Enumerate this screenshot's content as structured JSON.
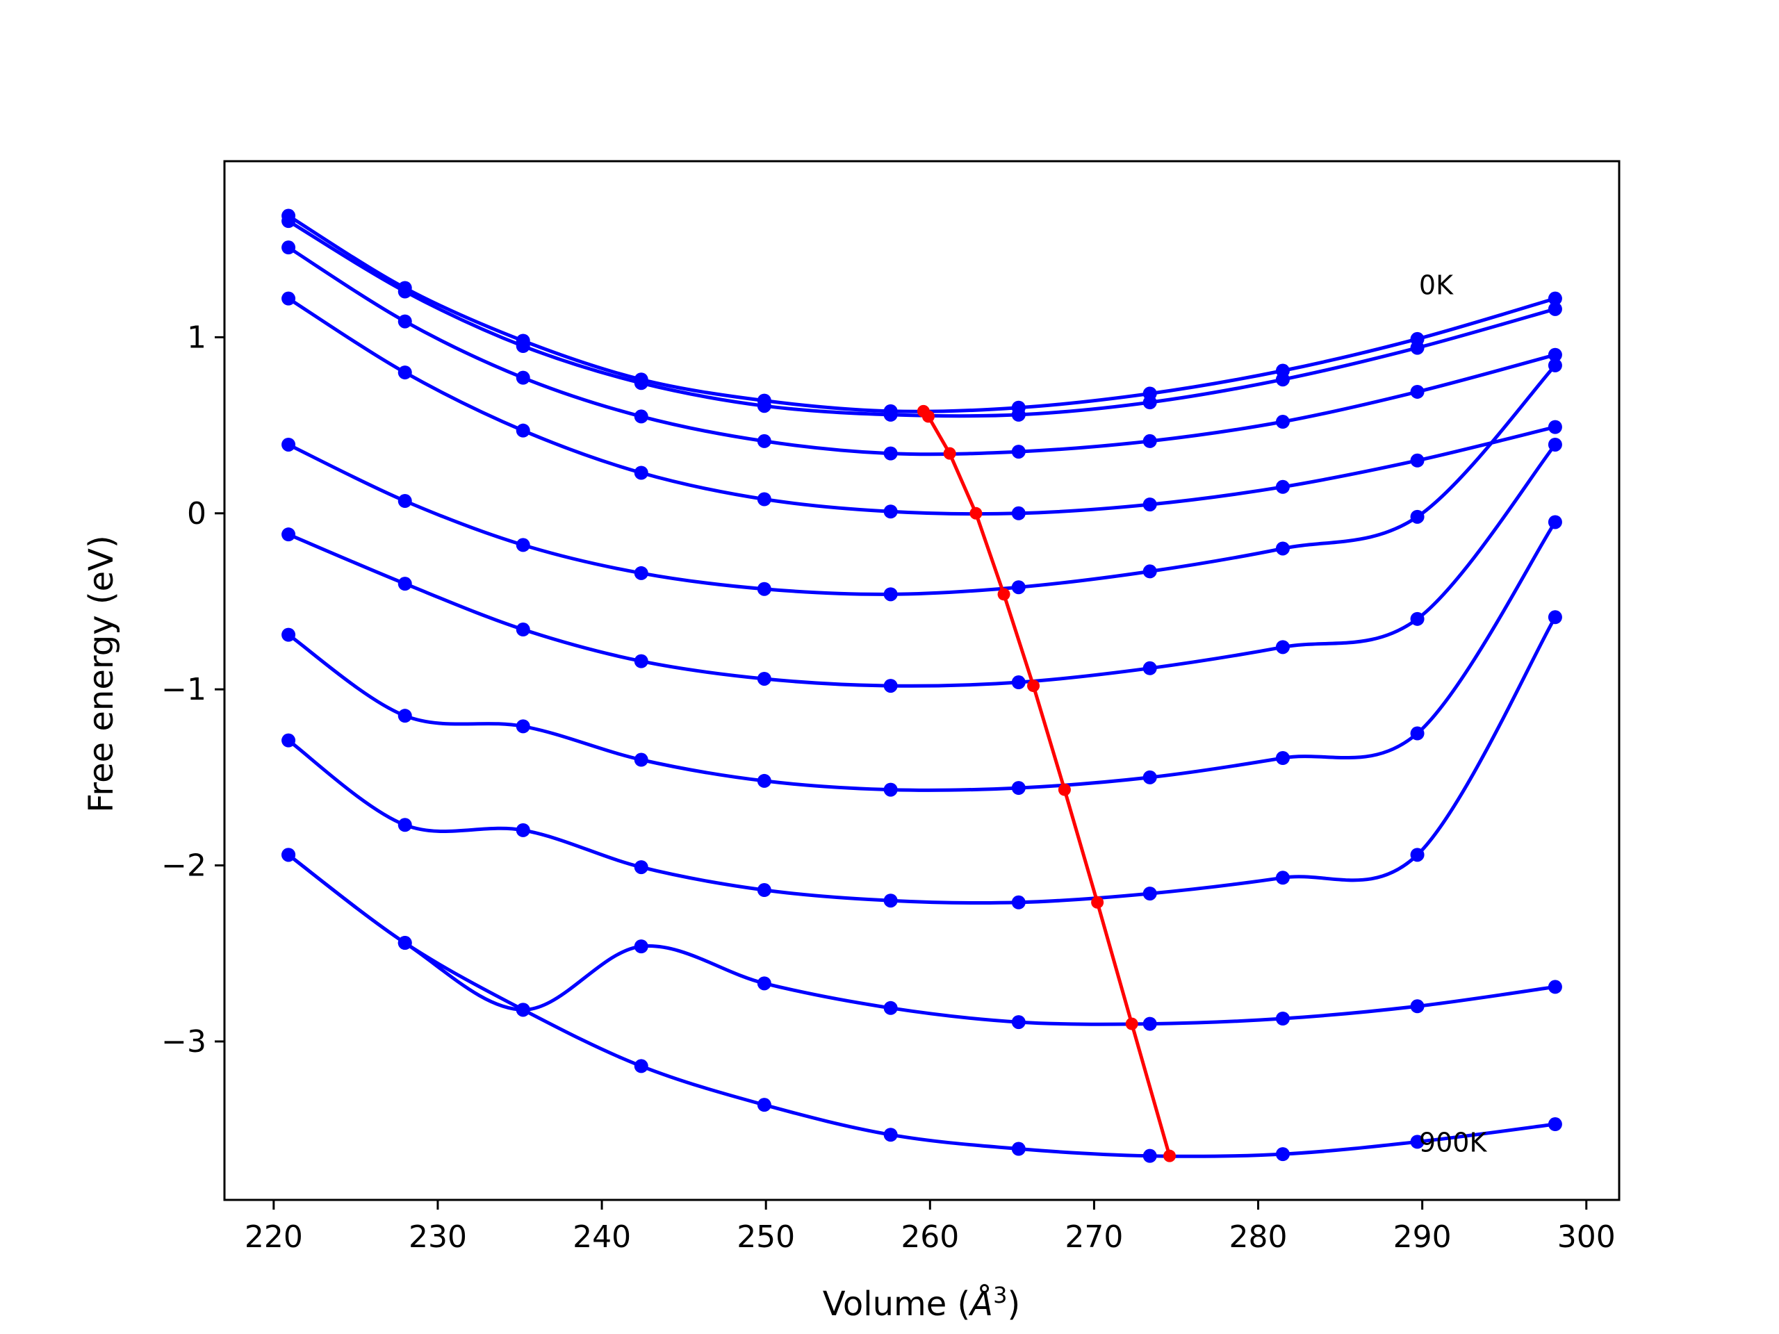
{
  "chart_data": {
    "type": "line",
    "title": "",
    "xlabel_prefix": "Volume (",
    "xlabel_unit": "Å",
    "xlabel_sup": "3",
    "xlabel_suffix": ")",
    "ylabel": "Free energy (eV)",
    "xlim": [
      217,
      302
    ],
    "ylim": [
      -3.9,
      2.0
    ],
    "xticks": [
      220,
      230,
      240,
      250,
      260,
      270,
      280,
      290,
      300
    ],
    "xtick_labels": [
      "220",
      "230",
      "240",
      "250",
      "260",
      "270",
      "280",
      "290",
      "300"
    ],
    "yticks": [
      1,
      0,
      -1,
      -2,
      -3
    ],
    "ytick_labels": [
      "1",
      "0",
      "−1",
      "−2",
      "−3"
    ],
    "grid": false,
    "annotations": [
      {
        "text": "0K",
        "x": 289.8,
        "y": 1.3
      },
      {
        "text": "900K",
        "x": 289.8,
        "y": -3.57
      }
    ],
    "curve_color": "#0000ff",
    "min_line_color": "#ff0000",
    "x": [
      220.9,
      228.0,
      235.2,
      242.4,
      249.9,
      257.6,
      265.4,
      273.4,
      281.5,
      289.7,
      298.1
    ],
    "series": [
      {
        "values": [
          1.69,
          1.28,
          0.98,
          0.76,
          0.64,
          0.58,
          0.6,
          0.68,
          0.81,
          0.99,
          1.22
        ]
      },
      {
        "values": [
          1.66,
          1.26,
          0.95,
          0.74,
          0.61,
          0.56,
          0.56,
          0.63,
          0.76,
          0.94,
          1.16
        ]
      },
      {
        "values": [
          1.51,
          1.09,
          0.77,
          0.55,
          0.41,
          0.34,
          0.35,
          0.41,
          0.52,
          0.69,
          0.9
        ]
      },
      {
        "values": [
          1.22,
          0.8,
          0.47,
          0.23,
          0.08,
          0.01,
          0.0,
          0.05,
          0.15,
          0.3,
          0.49
        ]
      },
      {
        "values": [
          0.39,
          0.07,
          -0.18,
          -0.34,
          -0.43,
          -0.46,
          -0.42,
          -0.33,
          -0.2,
          -0.02,
          0.84
        ]
      },
      {
        "values": [
          -0.12,
          -0.4,
          -0.66,
          -0.84,
          -0.94,
          -0.98,
          -0.96,
          -0.88,
          -0.76,
          -0.6,
          0.39
        ]
      },
      {
        "values": [
          -0.69,
          -1.15,
          -1.21,
          -1.4,
          -1.52,
          -1.57,
          -1.56,
          -1.5,
          -1.39,
          -1.25,
          -0.05
        ]
      },
      {
        "values": [
          -1.29,
          -1.77,
          -1.8,
          -2.01,
          -2.14,
          -2.2,
          -2.21,
          -2.16,
          -2.07,
          -1.94,
          -0.59
        ]
      },
      {
        "values": [
          -1.94,
          -2.44,
          -2.82,
          -2.46,
          -2.67,
          -2.81,
          -2.89,
          -2.9,
          -2.87,
          -2.8,
          -2.69
        ]
      },
      {
        "values": [
          -1.94,
          -2.44,
          -2.82,
          -3.14,
          -3.36,
          -3.53,
          -3.61,
          -3.65,
          -3.64,
          -3.57,
          -3.47
        ]
      }
    ],
    "minima": {
      "x": [
        259.6,
        259.9,
        261.2,
        262.8,
        264.5,
        266.3,
        268.2,
        270.2,
        272.3,
        274.6
      ],
      "values": [
        0.58,
        0.55,
        0.34,
        0.0,
        -0.46,
        -0.98,
        -1.57,
        -2.21,
        -2.9,
        -3.65
      ]
    }
  }
}
